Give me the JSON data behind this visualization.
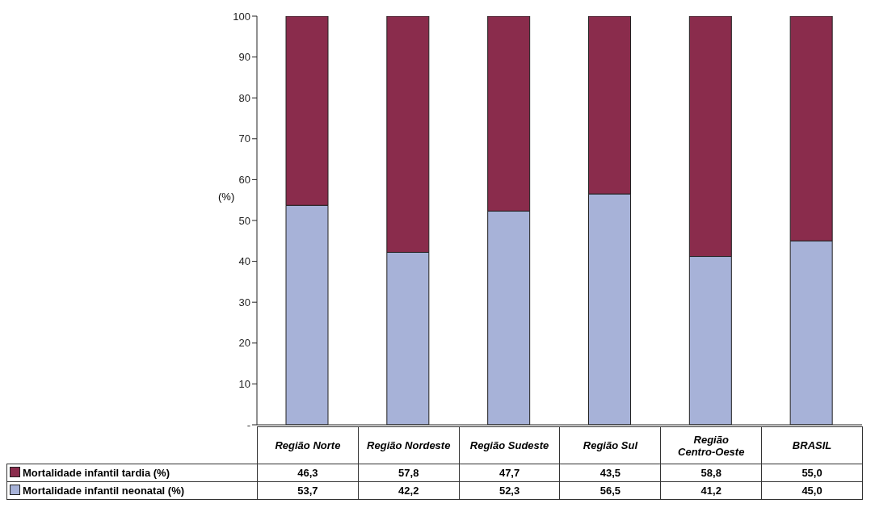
{
  "chart_data": {
    "type": "bar",
    "stacked": true,
    "ylabel": "(%)",
    "categories": [
      "Região Norte",
      "Região Nordeste",
      "Região Sudeste",
      "Região Sul",
      "Região Centro-Oeste",
      "BRASIL"
    ],
    "series": [
      {
        "name": "Mortalidade infantil neonatal (%)",
        "color": "#a7b2d8",
        "values": [
          53.7,
          42.2,
          52.3,
          56.5,
          41.2,
          45.0
        ],
        "value_labels": [
          "53,7",
          "42,2",
          "52,3",
          "56,5",
          "41,2",
          "45,0"
        ]
      },
      {
        "name": "Mortalidade infantil tardia (%)",
        "color": "#8a2c4c",
        "values": [
          46.3,
          57.8,
          47.7,
          43.5,
          58.8,
          55.0
        ],
        "value_labels": [
          "46,3",
          "57,8",
          "47,7",
          "43,5",
          "58,8",
          "55,0"
        ]
      }
    ],
    "ylim": [
      0,
      100
    ],
    "yticks": [
      {
        "value": 0,
        "label": "-"
      },
      10,
      20,
      30,
      40,
      50,
      60,
      70,
      80,
      90,
      100
    ],
    "grid": false,
    "legend": "bottom"
  }
}
